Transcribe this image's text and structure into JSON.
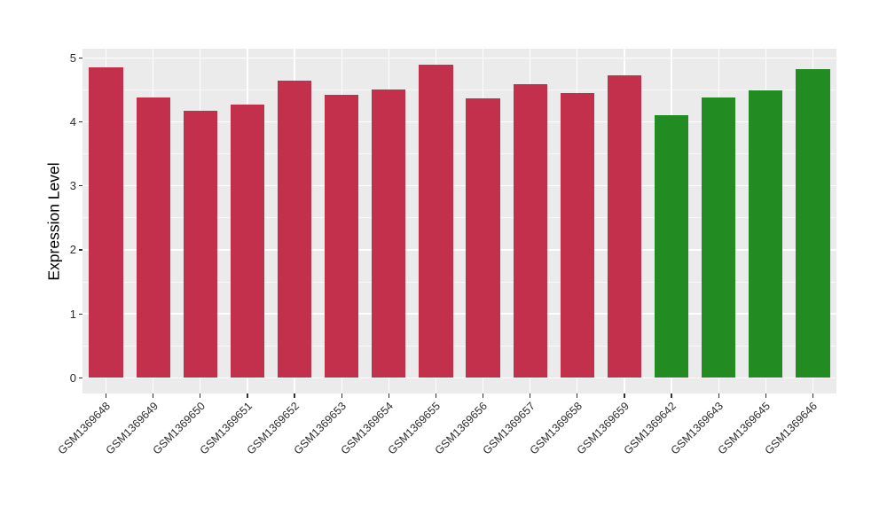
{
  "chart_data": {
    "type": "bar",
    "title": "",
    "xlabel": "",
    "ylabel": "Expression Level",
    "ylim": [
      0,
      5
    ],
    "y_major_ticks": [
      0,
      1,
      2,
      3,
      4,
      5
    ],
    "y_minor_ticks": [
      0.5,
      1.5,
      2.5,
      3.5,
      4.5
    ],
    "grid": "on",
    "legend_position": "none",
    "categories": [
      "GSM1369648",
      "GSM1369649",
      "GSM1369650",
      "GSM1369651",
      "GSM1369652",
      "GSM1369653",
      "GSM1369654",
      "GSM1369655",
      "GSM1369656",
      "GSM1369657",
      "GSM1369658",
      "GSM1369659",
      "GSM1369642",
      "GSM1369643",
      "GSM1369645",
      "GSM1369646"
    ],
    "values": [
      4.86,
      4.38,
      4.18,
      4.27,
      4.65,
      4.43,
      4.51,
      4.9,
      4.37,
      4.59,
      4.45,
      4.73,
      4.11,
      4.38,
      4.5,
      4.82
    ],
    "bar_colors": [
      "#C3304C",
      "#C3304C",
      "#C3304C",
      "#C3304C",
      "#C3304C",
      "#C3304C",
      "#C3304C",
      "#C3304C",
      "#C3304C",
      "#C3304C",
      "#C3304C",
      "#C3304C",
      "#228B22",
      "#228B22",
      "#228B22",
      "#228B22"
    ],
    "group_colors": {
      "group1_red": "#C3304C",
      "group2_green": "#228B22"
    }
  },
  "style": {
    "panel_background": "#EBEBEB",
    "gridline_color": "#FFFFFF",
    "tick_mark_color": "#333333",
    "tick_label_color": "#2B2B2B",
    "axis_title_color": "#000000",
    "page_background": "#FFFFFF"
  }
}
